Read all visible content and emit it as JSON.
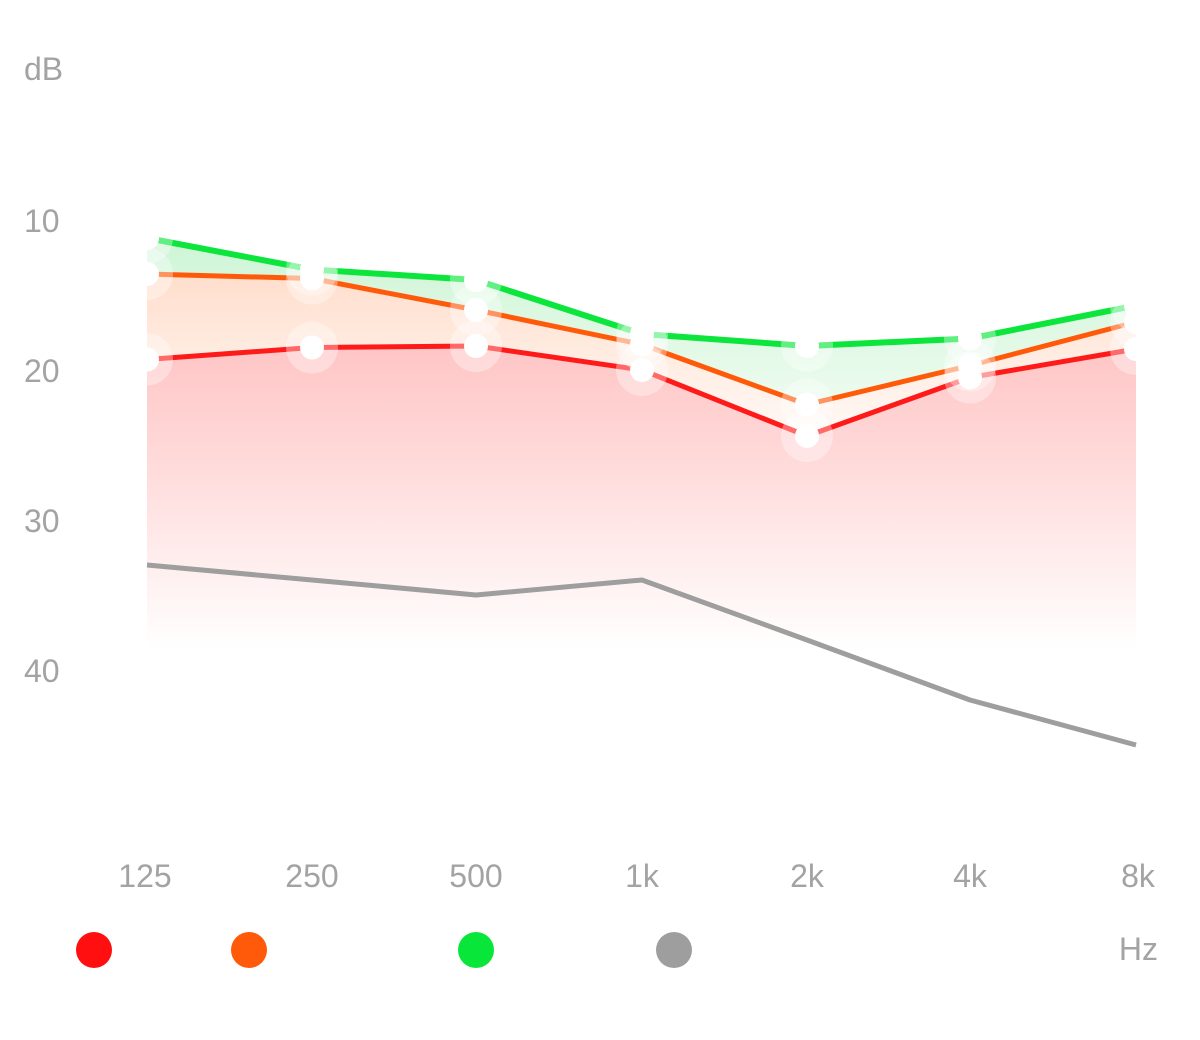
{
  "chart_data": {
    "type": "line",
    "ylabel": "dB",
    "xlabel": "Hz",
    "categories": [
      "125",
      "250",
      "500",
      "1k",
      "2k",
      "4k",
      "8k"
    ],
    "y_ticks": [
      10,
      20,
      30,
      40
    ],
    "ylim": [
      0,
      48
    ],
    "y_inverted": true,
    "grid": "horizontal lines at dB and 10 only",
    "legend": "bottom, colored dots without text",
    "series": [
      {
        "color": "#ff1a1a",
        "values": [
          19.3,
          18.5,
          18.4,
          20.0,
          24.4,
          20.5,
          18.6
        ]
      },
      {
        "color": "#ff5a0a",
        "values": [
          13.6,
          13.9,
          16.0,
          18.3,
          22.3,
          19.7,
          16.8
        ]
      },
      {
        "color": "#0ce63c",
        "values": [
          11.2,
          13.3,
          14.0,
          17.6,
          18.4,
          17.9,
          15.7
        ]
      },
      {
        "color": "#9e9e9e",
        "values": [
          33.0,
          34.0,
          35.0,
          34.0,
          38.0,
          42.0,
          45.0
        ]
      }
    ]
  }
}
